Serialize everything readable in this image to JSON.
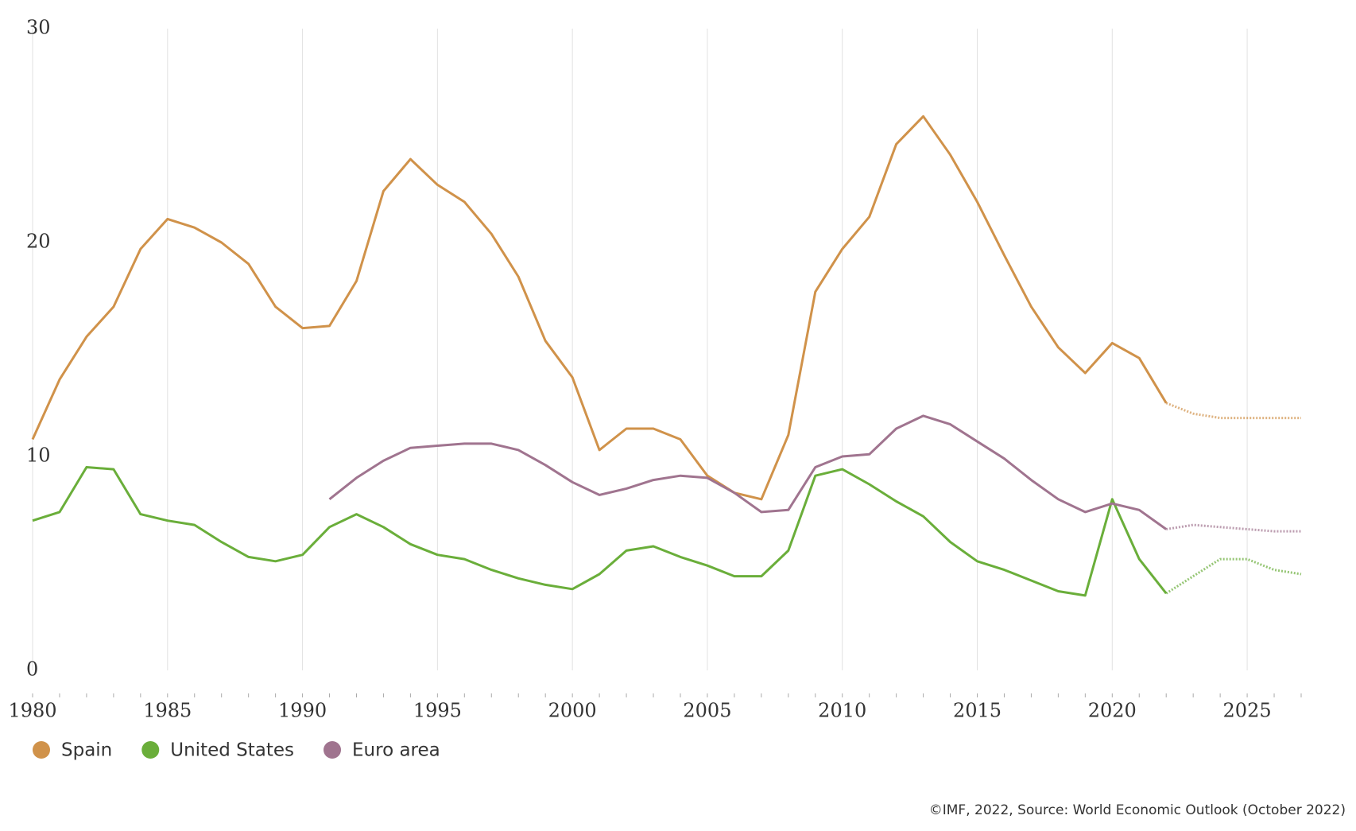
{
  "chart_data": {
    "type": "line",
    "x": [
      1980,
      1981,
      1982,
      1983,
      1984,
      1985,
      1986,
      1987,
      1988,
      1989,
      1990,
      1991,
      1992,
      1993,
      1994,
      1995,
      1996,
      1997,
      1998,
      1999,
      2000,
      2001,
      2002,
      2003,
      2004,
      2005,
      2006,
      2007,
      2008,
      2009,
      2010,
      2011,
      2012,
      2013,
      2014,
      2015,
      2016,
      2017,
      2018,
      2019,
      2020,
      2021,
      2022,
      2023,
      2024,
      2025,
      2026,
      2027
    ],
    "series": [
      {
        "name": "Spain",
        "color": "#d0924a",
        "values": [
          10.8,
          13.6,
          15.6,
          17.0,
          19.7,
          21.1,
          20.7,
          20.0,
          19.0,
          17.0,
          16.0,
          16.1,
          18.2,
          22.4,
          23.9,
          22.7,
          21.9,
          20.4,
          18.4,
          15.4,
          13.7,
          10.3,
          11.3,
          11.3,
          10.8,
          9.1,
          8.3,
          8.0,
          11.0,
          17.7,
          19.7,
          21.2,
          24.6,
          25.9,
          24.1,
          21.9,
          19.4,
          17.0,
          15.1,
          13.9,
          15.3,
          14.6,
          12.5,
          12.0,
          11.8,
          11.8,
          11.8,
          11.8
        ]
      },
      {
        "name": "United States",
        "color": "#6aae3a",
        "values": [
          7.0,
          7.4,
          9.5,
          9.4,
          7.3,
          7.0,
          6.8,
          6.0,
          5.3,
          5.1,
          5.4,
          6.7,
          7.3,
          6.7,
          5.9,
          5.4,
          5.2,
          4.7,
          4.3,
          4.0,
          3.8,
          4.5,
          5.6,
          5.8,
          5.3,
          4.9,
          4.4,
          4.4,
          5.6,
          9.1,
          9.4,
          8.7,
          7.9,
          7.2,
          6.0,
          5.1,
          4.7,
          4.2,
          3.7,
          3.5,
          8.0,
          5.2,
          3.6,
          4.4,
          5.2,
          5.2,
          4.7,
          4.5
        ]
      },
      {
        "name": "Euro area",
        "color": "#a0748f",
        "values": [
          null,
          null,
          null,
          null,
          null,
          null,
          null,
          null,
          null,
          null,
          null,
          8.0,
          9.0,
          9.8,
          10.4,
          10.5,
          10.6,
          10.6,
          10.3,
          9.6,
          8.8,
          8.2,
          8.5,
          8.9,
          9.1,
          9.0,
          8.3,
          7.4,
          7.5,
          9.5,
          10.0,
          10.1,
          11.3,
          11.9,
          11.5,
          10.7,
          9.9,
          8.9,
          8.0,
          7.4,
          7.8,
          7.5,
          6.6,
          6.8,
          6.7,
          6.6,
          6.5,
          6.5
        ]
      }
    ],
    "projection_from": 2022,
    "xlim": [
      1980,
      2027
    ],
    "xticks": [
      1980,
      1985,
      1990,
      1995,
      2000,
      2005,
      2010,
      2015,
      2020,
      2025
    ],
    "ylim": [
      0,
      30
    ],
    "yticks": [
      0,
      10,
      20,
      30
    ],
    "grid": true,
    "legend": "bottom-left",
    "source": "©IMF, 2022, Source: World Economic Outlook (October 2022)"
  }
}
